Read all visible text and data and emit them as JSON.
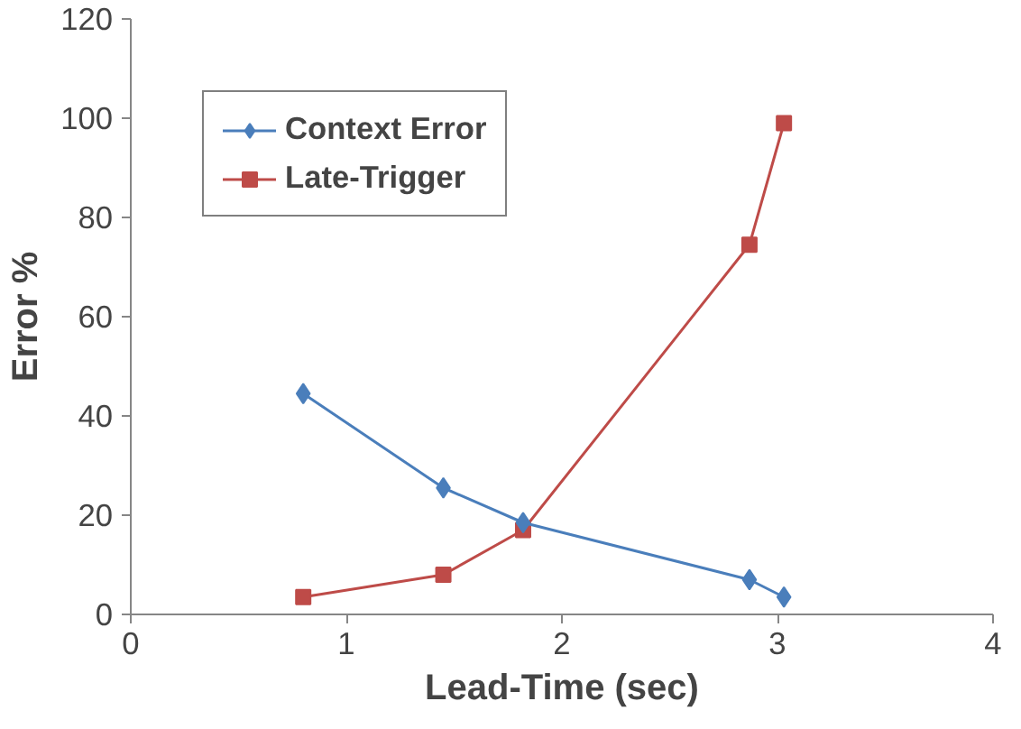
{
  "chart_data": {
    "type": "line",
    "xlabel": "Lead-Time (sec)",
    "ylabel": "Error %",
    "xlim": [
      0,
      4
    ],
    "xticks": [
      0,
      1,
      2,
      3,
      4
    ],
    "ylim": [
      0,
      120
    ],
    "yticks": [
      0,
      20,
      40,
      60,
      80,
      100,
      120
    ],
    "grid": false,
    "legend": "top left",
    "line_style": "solid",
    "series": [
      {
        "name": "Context Error",
        "color": "#4a7ebb",
        "marker": "diamond",
        "x": [
          0.8,
          1.45,
          1.82,
          2.87,
          3.03
        ],
        "values": [
          44.5,
          25.5,
          18.5,
          7,
          3.5
        ]
      },
      {
        "name": "Late-Trigger",
        "color": "#be4b48",
        "marker": "square",
        "x": [
          0.8,
          1.45,
          1.82,
          2.87,
          3.03
        ],
        "values": [
          3.5,
          8,
          17,
          74.5,
          99
        ]
      }
    ]
  }
}
